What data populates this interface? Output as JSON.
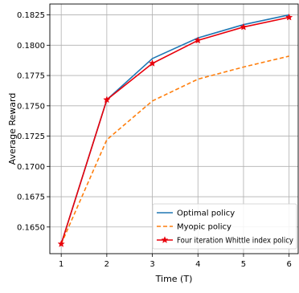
{
  "chart_data": {
    "type": "line",
    "title": "",
    "xlabel": "Time (T)",
    "ylabel": "Average Reward",
    "x": [
      1,
      2,
      3,
      4,
      5,
      6
    ],
    "xticks": [
      "1",
      "2",
      "3",
      "4",
      "5",
      "6"
    ],
    "yticks": [
      "0.1650",
      "0.1675",
      "0.1700",
      "0.1725",
      "0.1750",
      "0.1775",
      "0.1800",
      "0.1825"
    ],
    "xlim": [
      0.75,
      6.2
    ],
    "ylim": [
      0.1628,
      0.1834
    ],
    "grid": true,
    "legend_position": "lower-right",
    "series": [
      {
        "name": "Optimal policy",
        "values": [
          0.1636,
          0.1755,
          0.1789,
          0.1806,
          0.1817,
          0.1825
        ],
        "color": "#1f77b4",
        "style": "solid",
        "marker": "none"
      },
      {
        "name": "Myopic policy",
        "values": [
          0.1636,
          0.1722,
          0.1754,
          0.1772,
          0.1782,
          0.1791
        ],
        "color": "#ff7f0e",
        "style": "dashed",
        "marker": "none"
      },
      {
        "name": "Four iteration Whittle index policy",
        "values": [
          0.1636,
          0.1755,
          0.1785,
          0.1804,
          0.1815,
          0.1823
        ],
        "color": "#e8000b",
        "style": "solid",
        "marker": "star"
      }
    ]
  }
}
